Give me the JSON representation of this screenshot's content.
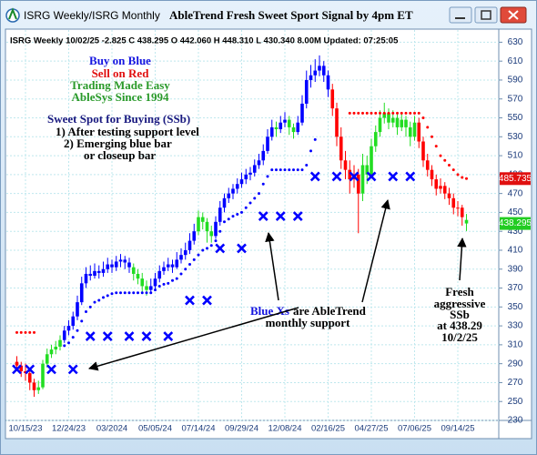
{
  "window": {
    "tabs": "ISRG Weekly/ISRG Monthly"
  },
  "chart_data": {
    "type": "candlestick",
    "title": "AbleTrend Fresh Sweet Sport Signal by 4pm ET",
    "subtitle": "ISRG  Weekly 10/02/25 -2.825 C 438.295 O 442.060 H 448.310 L 430.340 8.00M Updated: 07:25:05",
    "annotations": [
      "Buy on Blue",
      "Sell on Red",
      "Trading Made Easy",
      "AbleSys Since 1994",
      "Sweet Spot for Buying (SSb)",
      "1) After testing support level",
      "2) Emerging blue bar",
      "or closeup bar",
      "Blue Xs",
      "are AbleTrend",
      "monthly support",
      "Fresh",
      "aggressive",
      "SSb",
      "at 438.29",
      "10/2/25"
    ],
    "ylim": [
      230,
      640
    ],
    "yticks": [
      230,
      250,
      270,
      290,
      310,
      330,
      350,
      370,
      390,
      410,
      430,
      450,
      470,
      490,
      510,
      530,
      550,
      570,
      590,
      610,
      630
    ],
    "grid": true,
    "categories": [
      null,
      null,
      "10/15/23",
      null,
      null,
      null,
      null,
      null,
      null,
      null,
      null,
      null,
      "12/24/23",
      null,
      null,
      null,
      null,
      null,
      null,
      null,
      null,
      null,
      "03/2024",
      null,
      null,
      null,
      null,
      null,
      null,
      null,
      null,
      null,
      "05/05/24",
      null,
      null,
      null,
      null,
      null,
      null,
      null,
      null,
      null,
      "07/14/24",
      null,
      null,
      null,
      null,
      null,
      null,
      null,
      null,
      null,
      "09/29/24",
      null,
      null,
      null,
      null,
      null,
      null,
      null,
      null,
      null,
      "12/08/24",
      null,
      null,
      null,
      null,
      null,
      null,
      null,
      null,
      null,
      "02/16/25",
      null,
      null,
      null,
      null,
      null,
      null,
      null,
      null,
      null,
      "04/27/25",
      null,
      null,
      null,
      null,
      null,
      null,
      null,
      null,
      null,
      "07/06/25",
      null,
      null,
      null,
      null,
      null,
      null,
      null,
      null,
      null,
      "09/14/25",
      null,
      null
    ],
    "ohlc": [
      [
        292,
        298,
        284,
        288
      ],
      [
        288,
        292,
        276,
        282
      ],
      [
        282,
        290,
        272,
        280
      ],
      [
        280,
        284,
        262,
        270
      ],
      [
        270,
        274,
        255,
        262
      ],
      [
        262,
        272,
        258,
        265
      ],
      [
        265,
        294,
        263,
        290
      ],
      [
        290,
        306,
        286,
        300
      ],
      [
        300,
        310,
        296,
        305
      ],
      [
        305,
        314,
        300,
        308
      ],
      [
        308,
        320,
        304,
        315
      ],
      [
        315,
        330,
        312,
        325
      ],
      [
        325,
        336,
        320,
        330
      ],
      [
        330,
        345,
        326,
        340
      ],
      [
        340,
        362,
        336,
        355
      ],
      [
        355,
        382,
        352,
        375
      ],
      [
        375,
        392,
        370,
        385
      ],
      [
        385,
        394,
        378,
        383
      ],
      [
        383,
        396,
        380,
        388
      ],
      [
        388,
        394,
        380,
        386
      ],
      [
        386,
        398,
        382,
        390
      ],
      [
        390,
        402,
        386,
        395
      ],
      [
        395,
        400,
        386,
        392
      ],
      [
        392,
        404,
        388,
        398
      ],
      [
        398,
        406,
        392,
        400
      ],
      [
        400,
        404,
        390,
        397
      ],
      [
        397,
        402,
        386,
        392
      ],
      [
        392,
        396,
        378,
        385
      ],
      [
        385,
        390,
        374,
        380
      ],
      [
        380,
        386,
        366,
        372
      ],
      [
        372,
        378,
        362,
        368
      ],
      [
        368,
        380,
        364,
        372
      ],
      [
        372,
        386,
        368,
        380
      ],
      [
        380,
        394,
        376,
        388
      ],
      [
        388,
        398,
        384,
        392
      ],
      [
        392,
        402,
        388,
        395
      ],
      [
        395,
        400,
        386,
        392
      ],
      [
        392,
        408,
        390,
        400
      ],
      [
        400,
        412,
        396,
        405
      ],
      [
        405,
        418,
        400,
        410
      ],
      [
        410,
        428,
        406,
        420
      ],
      [
        420,
        438,
        416,
        430
      ],
      [
        430,
        452,
        426,
        445
      ],
      [
        445,
        450,
        432,
        440
      ],
      [
        440,
        444,
        418,
        430
      ],
      [
        430,
        436,
        418,
        425
      ],
      [
        425,
        446,
        422,
        440
      ],
      [
        440,
        462,
        436,
        455
      ],
      [
        455,
        470,
        450,
        465
      ],
      [
        465,
        476,
        460,
        470
      ],
      [
        470,
        480,
        464,
        475
      ],
      [
        475,
        486,
        470,
        480
      ],
      [
        480,
        492,
        476,
        485
      ],
      [
        485,
        496,
        480,
        490
      ],
      [
        490,
        498,
        484,
        492
      ],
      [
        492,
        506,
        488,
        500
      ],
      [
        500,
        512,
        496,
        505
      ],
      [
        505,
        522,
        500,
        515
      ],
      [
        515,
        538,
        512,
        530
      ],
      [
        530,
        548,
        526,
        540
      ],
      [
        540,
        546,
        530,
        538
      ],
      [
        538,
        552,
        534,
        545
      ],
      [
        545,
        556,
        540,
        548
      ],
      [
        548,
        552,
        532,
        540
      ],
      [
        540,
        544,
        528,
        535
      ],
      [
        535,
        552,
        532,
        545
      ],
      [
        545,
        574,
        542,
        565
      ],
      [
        565,
        600,
        560,
        590
      ],
      [
        590,
        606,
        582,
        595
      ],
      [
        595,
        612,
        588,
        600
      ],
      [
        600,
        616,
        594,
        605
      ],
      [
        605,
        610,
        588,
        595
      ],
      [
        595,
        600,
        572,
        580
      ],
      [
        580,
        586,
        552,
        560
      ],
      [
        560,
        566,
        520,
        530
      ],
      [
        530,
        540,
        496,
        505
      ],
      [
        505,
        515,
        485,
        495
      ],
      [
        495,
        505,
        470,
        485
      ],
      [
        485,
        500,
        476,
        490
      ],
      [
        490,
        496,
        428,
        470
      ],
      [
        470,
        512,
        462,
        500
      ],
      [
        500,
        510,
        480,
        490
      ],
      [
        490,
        528,
        486,
        520
      ],
      [
        520,
        542,
        514,
        535
      ],
      [
        535,
        558,
        530,
        550
      ],
      [
        550,
        566,
        544,
        555
      ],
      [
        555,
        560,
        538,
        545
      ],
      [
        545,
        558,
        540,
        550
      ],
      [
        550,
        556,
        532,
        540
      ],
      [
        540,
        556,
        536,
        548
      ],
      [
        548,
        552,
        530,
        540
      ],
      [
        540,
        546,
        520,
        530
      ],
      [
        530,
        552,
        526,
        545
      ],
      [
        545,
        550,
        518,
        525
      ],
      [
        525,
        530,
        498,
        505
      ],
      [
        505,
        512,
        488,
        495
      ],
      [
        495,
        500,
        478,
        485
      ],
      [
        485,
        490,
        468,
        475
      ],
      [
        475,
        486,
        470,
        478
      ],
      [
        478,
        482,
        464,
        470
      ],
      [
        470,
        476,
        458,
        465
      ],
      [
        465,
        470,
        448,
        455
      ],
      [
        455,
        462,
        446,
        455
      ],
      [
        455,
        458,
        436,
        445
      ],
      [
        442.06,
        448.31,
        430.34,
        438.295
      ]
    ],
    "bar_colors": [
      "#ff0000",
      "#ff0000",
      "#ff0000",
      "#ff0000",
      "#ff0000",
      "#22dd22",
      "#22dd22",
      "#22dd22",
      "#22dd22",
      "#22dd22",
      "#22dd22",
      "#0000ff",
      "#0000ff",
      "#0000ff",
      "#0000ff",
      "#0000ff",
      "#0000ff",
      "#0000ff",
      "#0000ff",
      "#0000ff",
      "#0000ff",
      "#0000ff",
      "#0000ff",
      "#0000ff",
      "#0000ff",
      "#0000ff",
      "#0000ff",
      "#22dd22",
      "#22dd22",
      "#22dd22",
      "#22dd22",
      "#0000ff",
      "#0000ff",
      "#0000ff",
      "#0000ff",
      "#0000ff",
      "#0000ff",
      "#0000ff",
      "#0000ff",
      "#0000ff",
      "#0000ff",
      "#0000ff",
      "#22dd22",
      "#22dd22",
      "#22dd22",
      "#22dd22",
      "#0000ff",
      "#0000ff",
      "#0000ff",
      "#0000ff",
      "#0000ff",
      "#0000ff",
      "#0000ff",
      "#0000ff",
      "#0000ff",
      "#0000ff",
      "#0000ff",
      "#0000ff",
      "#0000ff",
      "#0000ff",
      "#22dd22",
      "#0000ff",
      "#0000ff",
      "#22dd22",
      "#22dd22",
      "#0000ff",
      "#0000ff",
      "#0000ff",
      "#0000ff",
      "#0000ff",
      "#0000ff",
      "#0000ff",
      "#0000ff",
      "#ff0000",
      "#ff0000",
      "#ff0000",
      "#ff0000",
      "#ff0000",
      "#ff0000",
      "#ff0000",
      "#22dd22",
      "#22dd22",
      "#22dd22",
      "#22dd22",
      "#22dd22",
      "#22dd22",
      "#22dd22",
      "#22dd22",
      "#22dd22",
      "#22dd22",
      "#22dd22",
      "#22dd22",
      "#22dd22",
      "#ff0000",
      "#ff0000",
      "#ff0000",
      "#ff0000",
      "#ff0000",
      "#ff0000",
      "#ff0000",
      "#ff0000",
      "#ff0000",
      "#ff0000",
      "#ff0000",
      "#22dd22"
    ],
    "support_stops": {
      "color": "#0000ff",
      "values": [
        null,
        null,
        null,
        null,
        null,
        null,
        null,
        null,
        null,
        null,
        null,
        309,
        312,
        318,
        325,
        335,
        345,
        350,
        355,
        357,
        360,
        362,
        364,
        365,
        365,
        365,
        365,
        365,
        365,
        365,
        365,
        365,
        368,
        372,
        374,
        375,
        378,
        380,
        385,
        390,
        395,
        400,
        405,
        410,
        412,
        415,
        420,
        430,
        440,
        443,
        446,
        448,
        450,
        455,
        460,
        465,
        470,
        480,
        488,
        495,
        495,
        495,
        495,
        495,
        495,
        495,
        495,
        500,
        515,
        527,
        null,
        null,
        null,
        null,
        null,
        null,
        null,
        null,
        null,
        null,
        null,
        null,
        null,
        null,
        null,
        null,
        null,
        null,
        null,
        null,
        null,
        null,
        null,
        null,
        null,
        null,
        null,
        null,
        null,
        null,
        null,
        null,
        null,
        null,
        null
      ]
    },
    "resistance_stops": {
      "color": "#ff0000",
      "values": [
        323,
        323,
        323,
        323,
        323,
        null,
        null,
        null,
        null,
        null,
        null,
        null,
        null,
        null,
        null,
        null,
        null,
        null,
        null,
        null,
        null,
        null,
        null,
        null,
        null,
        null,
        null,
        null,
        null,
        null,
        null,
        null,
        null,
        null,
        null,
        null,
        null,
        null,
        null,
        null,
        null,
        null,
        null,
        null,
        null,
        null,
        null,
        null,
        null,
        null,
        null,
        null,
        null,
        null,
        null,
        null,
        null,
        null,
        null,
        null,
        null,
        null,
        null,
        null,
        null,
        null,
        null,
        null,
        null,
        null,
        null,
        null,
        null,
        null,
        null,
        null,
        null,
        555,
        555,
        555,
        555,
        555,
        555,
        555,
        555,
        555,
        555,
        555,
        555,
        555,
        555,
        555,
        555,
        555,
        550,
        540,
        530,
        520,
        510,
        505,
        500,
        495,
        490,
        487,
        485.735
      ]
    },
    "monthly_support": {
      "color": "#0000ff",
      "values": [
        284,
        null,
        null,
        284,
        null,
        null,
        null,
        null,
        284,
        null,
        null,
        null,
        null,
        284,
        null,
        null,
        null,
        319,
        null,
        null,
        null,
        319,
        null,
        null,
        null,
        null,
        319,
        null,
        null,
        null,
        319,
        null,
        null,
        null,
        null,
        319,
        null,
        null,
        null,
        null,
        357,
        null,
        null,
        null,
        357,
        null,
        null,
        412,
        null,
        null,
        null,
        null,
        412,
        null,
        null,
        null,
        null,
        446,
        null,
        null,
        null,
        446,
        null,
        null,
        null,
        446,
        null,
        null,
        null,
        488,
        null,
        null,
        null,
        null,
        488,
        null,
        null,
        null,
        488,
        null,
        null,
        null,
        488,
        null,
        null,
        null,
        null,
        488,
        null,
        null,
        null,
        488,
        null,
        null,
        null,
        null,
        null,
        null,
        null,
        null,
        null,
        null,
        null,
        null,
        null
      ]
    }
  }
}
